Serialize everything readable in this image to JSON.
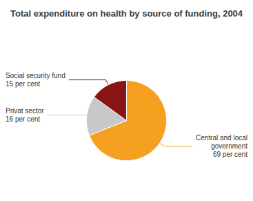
{
  "chart_data": {
    "type": "pie",
    "title": "Total expenditure on health by source of funding, 2004",
    "categories": [
      "Central and local\ngovernment\n69 per cent",
      "Privat sector\n16 per cent",
      "Social security fund\n15 per cent"
    ],
    "values": [
      69,
      16,
      15
    ],
    "colors": [
      "#F5A020",
      "#C8C8C8",
      "#8B1515"
    ]
  }
}
